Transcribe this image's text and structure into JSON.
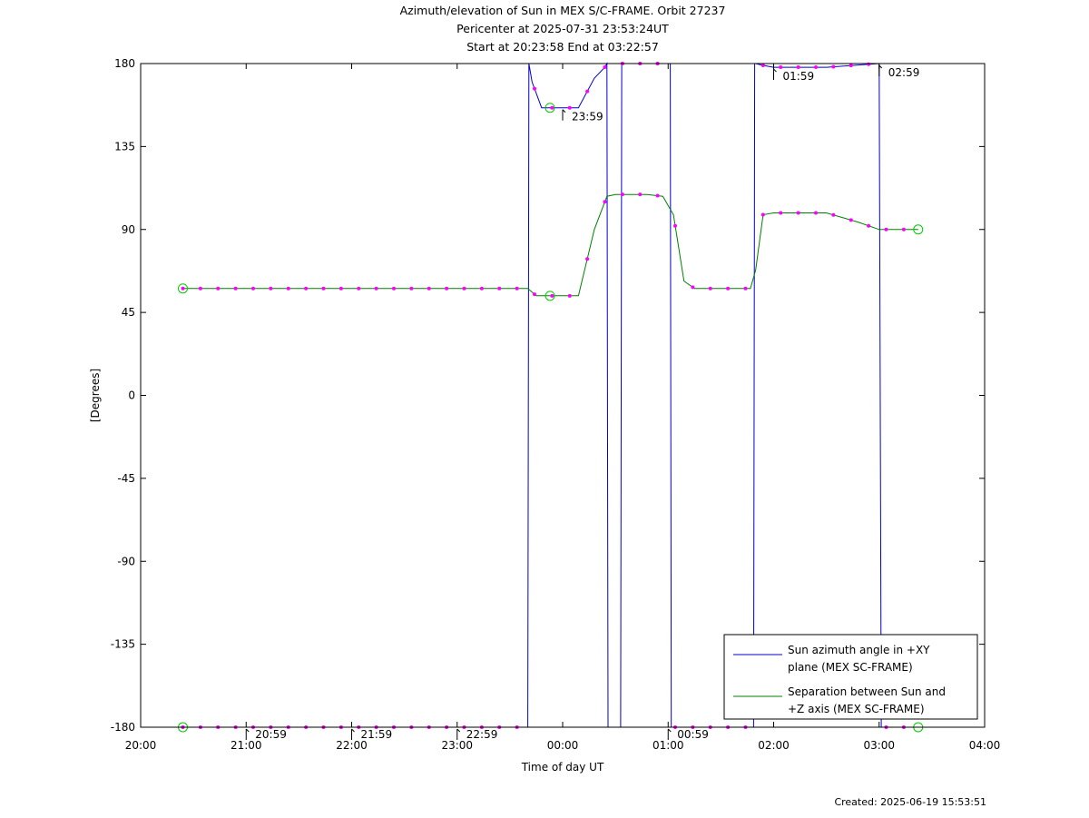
{
  "title_lines": [
    "Azimuth/elevation of Sun in MEX S/C-FRAME.  Orbit 27237",
    "Pericenter at 2025-07-31 23:53:24UT",
    "Start at 20:23:58 End at 03:22:57"
  ],
  "created": "Created: 2025-06-19 15:53:51",
  "colors": {
    "azimuth": "#0000cc",
    "separation": "#008000",
    "markers": "#ff00ff",
    "circles": "#00cc00"
  },
  "chart_data": {
    "type": "line",
    "xlabel": "Time of day UT",
    "ylabel": "[Degrees]",
    "xlim": [
      20.0,
      28.0
    ],
    "ylim": [
      -180,
      180
    ],
    "x_ticks": [
      "20:00",
      "21:00",
      "22:00",
      "23:00",
      "00:00",
      "01:00",
      "02:00",
      "03:00",
      "04:00"
    ],
    "y_ticks": [
      180,
      135,
      90,
      45,
      0,
      -45,
      -90,
      -135,
      -180
    ],
    "legend_position": "bottom-right",
    "series": [
      {
        "name": "Sun azimuth angle in +XY plane (MEX SC-FRAME)",
        "legend_lines": [
          "Sun azimuth angle in +XY",
          "plane (MEX SC-FRAME)"
        ],
        "x": [
          20.4,
          23.0,
          23.67,
          23.68,
          23.71,
          23.8,
          24.0,
          24.15,
          24.3,
          24.4,
          24.42,
          24.43,
          24.48,
          24.5,
          24.52,
          24.55,
          24.56,
          24.58,
          25.0,
          25.02,
          25.03,
          25.04,
          25.1,
          25.5,
          25.8,
          25.81,
          25.82,
          25.83,
          25.9,
          26.0,
          26.5,
          27.0,
          27.0,
          27.02,
          27.03,
          27.3,
          27.37
        ],
        "y": [
          -180,
          -180,
          -180,
          180,
          170,
          156,
          156,
          156,
          172,
          178,
          180,
          -180,
          -180,
          -180,
          -180,
          -180,
          180,
          180,
          180,
          180,
          -180,
          -180,
          -180,
          -180,
          -180,
          -180,
          180,
          180,
          179,
          178,
          178,
          180,
          180,
          -180,
          -180,
          -180,
          -180
        ]
      },
      {
        "name": "Separation between Sun and +Z axis (MEX SC-FRAME)",
        "legend_lines": [
          "Separation between Sun and",
          "+Z axis (MEX SC-FRAME)"
        ],
        "x": [
          20.4,
          23.0,
          23.67,
          23.75,
          24.0,
          24.15,
          24.3,
          24.42,
          24.5,
          24.6,
          24.8,
          24.95,
          25.05,
          25.15,
          25.25,
          25.5,
          25.78,
          25.83,
          25.9,
          26.0,
          26.5,
          26.8,
          27.0,
          27.37
        ],
        "y": [
          58,
          58,
          58,
          54,
          54,
          54,
          90,
          108,
          109,
          109,
          109,
          108,
          98,
          62,
          58,
          58,
          58,
          68,
          98,
          99,
          99,
          94,
          90,
          90
        ]
      }
    ],
    "annotations": [
      {
        "label": "20:59",
        "x": 21.0,
        "y": -180
      },
      {
        "label": "21:59",
        "x": 22.0,
        "y": -180
      },
      {
        "label": "22:59",
        "x": 23.0,
        "y": -180
      },
      {
        "label": "23:59",
        "x": 24.0,
        "y": 156
      },
      {
        "label": "00:59",
        "x": 25.0,
        "y": -180
      },
      {
        "label": "01:59",
        "x": 26.0,
        "y": 178
      },
      {
        "label": "02:59",
        "x": 27.0,
        "y": 180
      }
    ]
  }
}
